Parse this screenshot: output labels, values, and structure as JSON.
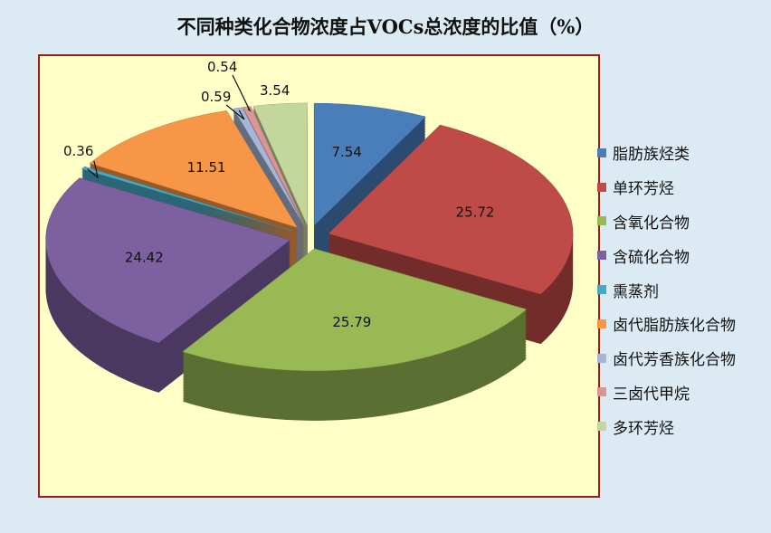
{
  "chart_data": {
    "type": "pie",
    "title": "不同种类化合物浓度占VOCs总浓度的比值（%）",
    "style": "3d-exploded",
    "legend_position": "right",
    "slices": [
      {
        "label": "脂肪族烃类",
        "value": 7.54,
        "value_label": "7.54",
        "color": "#4a7ebb"
      },
      {
        "label": "单环芳烃",
        "value": 25.72,
        "value_label": "25.72",
        "color": "#be4b48"
      },
      {
        "label": "含氧化合物",
        "value": 25.79,
        "value_label": "25.79",
        "color": "#98b954"
      },
      {
        "label": "含硫化合物",
        "value": 24.42,
        "value_label": "24.42",
        "color": "#7d60a0"
      },
      {
        "label": "熏蒸剂",
        "value": 0.36,
        "value_label": "0.36",
        "color": "#46aac5"
      },
      {
        "label": "卤代脂肪族化合物",
        "value": 11.51,
        "value_label": "11.51",
        "color": "#f79646"
      },
      {
        "label": "卤代芳香族化合物",
        "value": 0.59,
        "value_label": "0.59",
        "color": "#a5b6d8"
      },
      {
        "label": "三卤代甲烷",
        "value": 0.54,
        "value_label": "0.54",
        "color": "#d99694"
      },
      {
        "label": "多环芳烃",
        "value": 3.54,
        "value_label": "3.54",
        "color": "#c3d69b"
      }
    ]
  }
}
